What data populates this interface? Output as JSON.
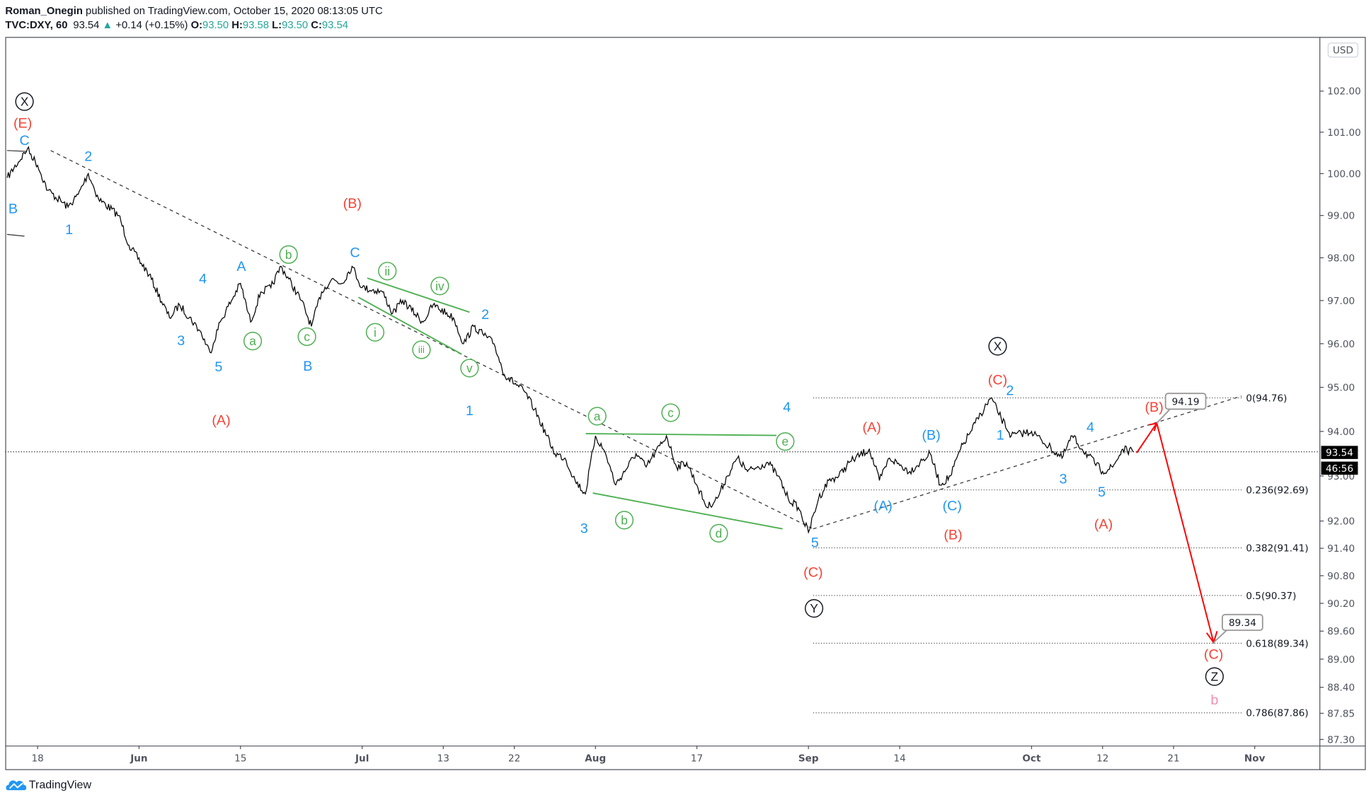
{
  "header": {
    "author": "Roman_Onegin",
    "published": " published on TradingView.com, October 15, 2020 08:13:05 UTC",
    "symbol": "TVC:DXY, 60",
    "last": "93.54",
    "change": "+0.14 (+0.15%)",
    "o_label": "O:",
    "o": "93.50",
    "h_label": "H:",
    "h": "93.58",
    "l_label": "L:",
    "l": "93.50",
    "c_label": "C:",
    "c": "93.54"
  },
  "footer": {
    "brand": "TradingView"
  },
  "colors": {
    "wave_blue": "#2196f3",
    "wave_red": "#f44336",
    "wave_green": "#4caf50",
    "wave_black": "#131722",
    "wave_pink": "#f48fb1",
    "arrow": "#ff0000",
    "up": "#26a69a"
  },
  "chart_data": {
    "type": "line",
    "title": "TVC:DXY, 60",
    "currency": "USD",
    "y_scale": "log",
    "ylim": [
      87.3,
      102.6
    ],
    "xlim": [
      "2020-05-13",
      "2020-11-04"
    ],
    "grid": false,
    "last_price": "93.54",
    "countdown": "46:56",
    "y_ticks": [
      "102.00",
      "101.00",
      "100.00",
      "99.00",
      "98.00",
      "97.00",
      "96.00",
      "95.00",
      "94.00",
      "93.00",
      "92.00",
      "91.40",
      "90.80",
      "90.20",
      "89.60",
      "89.00",
      "88.40",
      "87.85",
      "87.30"
    ],
    "x_ticks": [
      {
        "date": "2020-05-18",
        "label": "18",
        "major": false
      },
      {
        "date": "2020-06-01",
        "label": "Jun",
        "major": true
      },
      {
        "date": "2020-06-15",
        "label": "15",
        "major": false
      },
      {
        "date": "2020-07-01",
        "label": "Jul",
        "major": true
      },
      {
        "date": "2020-07-13",
        "label": "13",
        "major": false
      },
      {
        "date": "2020-07-22",
        "label": "22",
        "major": false
      },
      {
        "date": "2020-08-03",
        "label": "Aug",
        "major": true
      },
      {
        "date": "2020-08-17",
        "label": "17",
        "major": false
      },
      {
        "date": "2020-09-01",
        "label": "Sep",
        "major": true
      },
      {
        "date": "2020-09-14",
        "label": "14",
        "major": false
      },
      {
        "date": "2020-10-01",
        "label": "Oct",
        "major": true
      },
      {
        "date": "2020-10-12",
        "label": "12",
        "major": false
      },
      {
        "date": "2020-10-21",
        "label": "21",
        "major": false
      },
      {
        "date": "2020-11-02",
        "label": "Nov",
        "major": true
      }
    ],
    "series": [
      {
        "points": [
          [
            "2020-05-13",
            99.9
          ],
          [
            "2020-05-15",
            100.6
          ],
          [
            "2020-05-18",
            100.2
          ],
          [
            "2020-05-19",
            99.6
          ],
          [
            "2020-05-21",
            99.2
          ],
          [
            "2020-05-22",
            99.5
          ],
          [
            "2020-05-25",
            100.0
          ],
          [
            "2020-05-26",
            99.4
          ],
          [
            "2020-05-28",
            99.0
          ],
          [
            "2020-05-29",
            98.3
          ],
          [
            "2020-06-02",
            97.6
          ],
          [
            "2020-06-04",
            96.6
          ],
          [
            "2020-06-05",
            96.9
          ],
          [
            "2020-06-09",
            96.3
          ],
          [
            "2020-06-10",
            95.8
          ],
          [
            "2020-06-11",
            96.5
          ],
          [
            "2020-06-15",
            97.4
          ],
          [
            "2020-06-16",
            96.5
          ],
          [
            "2020-06-17",
            97.2
          ],
          [
            "2020-06-18",
            97.3
          ],
          [
            "2020-06-19",
            97.8
          ],
          [
            "2020-06-23",
            97.0
          ],
          [
            "2020-06-24",
            96.4
          ],
          [
            "2020-06-25",
            97.2
          ],
          [
            "2020-06-26",
            97.5
          ],
          [
            "2020-06-29",
            97.4
          ],
          [
            "2020-06-30",
            97.8
          ],
          [
            "2020-07-01",
            97.3
          ],
          [
            "2020-07-03",
            97.2
          ],
          [
            "2020-07-06",
            96.7
          ],
          [
            "2020-07-07",
            97.0
          ],
          [
            "2020-07-09",
            96.5
          ],
          [
            "2020-07-10",
            96.9
          ],
          [
            "2020-07-14",
            96.6
          ],
          [
            "2020-07-15",
            96.0
          ],
          [
            "2020-07-16",
            96.4
          ],
          [
            "2020-07-20",
            96.0
          ],
          [
            "2020-07-21",
            95.3
          ],
          [
            "2020-07-23",
            94.9
          ],
          [
            "2020-07-24",
            94.5
          ],
          [
            "2020-07-28",
            93.5
          ],
          [
            "2020-07-29",
            93.4
          ],
          [
            "2020-07-30",
            92.9
          ],
          [
            "2020-07-31",
            92.6
          ],
          [
            "2020-08-03",
            93.9
          ],
          [
            "2020-08-04",
            93.5
          ],
          [
            "2020-08-05",
            92.8
          ],
          [
            "2020-08-07",
            93.5
          ],
          [
            "2020-08-10",
            93.2
          ],
          [
            "2020-08-12",
            93.9
          ],
          [
            "2020-08-13",
            93.2
          ],
          [
            "2020-08-14",
            93.3
          ],
          [
            "2020-08-17",
            92.8
          ],
          [
            "2020-08-18",
            92.3
          ],
          [
            "2020-08-19",
            92.5
          ],
          [
            "2020-08-20",
            93.0
          ],
          [
            "2020-08-21",
            93.4
          ],
          [
            "2020-08-24",
            93.1
          ],
          [
            "2020-08-26",
            93.3
          ],
          [
            "2020-08-27",
            93.0
          ],
          [
            "2020-08-28",
            92.5
          ],
          [
            "2020-08-31",
            92.3
          ],
          [
            "2020-09-01",
            91.75
          ],
          [
            "2020-09-02",
            92.5
          ],
          [
            "2020-09-03",
            92.9
          ],
          [
            "2020-09-04",
            93.0
          ],
          [
            "2020-09-07",
            93.3
          ],
          [
            "2020-09-09",
            93.6
          ],
          [
            "2020-09-10",
            92.9
          ],
          [
            "2020-09-11",
            93.4
          ],
          [
            "2020-09-15",
            93.1
          ],
          [
            "2020-09-16",
            93.3
          ],
          [
            "2020-09-17",
            93.5
          ],
          [
            "2020-09-18",
            92.8
          ],
          [
            "2020-09-21",
            93.0
          ],
          [
            "2020-09-22",
            93.6
          ],
          [
            "2020-09-23",
            94.0
          ],
          [
            "2020-09-24",
            94.4
          ],
          [
            "2020-09-25",
            94.76
          ],
          [
            "2020-09-28",
            94.3
          ],
          [
            "2020-09-29",
            93.9
          ],
          [
            "2020-10-01",
            94.0
          ],
          [
            "2020-10-02",
            93.8
          ],
          [
            "2020-10-06",
            93.4
          ],
          [
            "2020-10-07",
            93.9
          ],
          [
            "2020-10-08",
            93.6
          ],
          [
            "2020-10-12",
            93.1
          ],
          [
            "2020-10-13",
            93.2
          ],
          [
            "2020-10-14",
            93.6
          ],
          [
            "2020-10-15",
            93.54
          ]
        ]
      }
    ],
    "fib_levels": [
      {
        "ratio": "0",
        "price": "94.76",
        "label": "0(94.76)"
      },
      {
        "ratio": "0.236",
        "price": "92.69",
        "label": "0.236(92.69)"
      },
      {
        "ratio": "0.382",
        "price": "91.41",
        "label": "0.382(91.41)"
      },
      {
        "ratio": "0.5",
        "price": "90.37",
        "label": "0.5(90.37)"
      },
      {
        "ratio": "0.618",
        "price": "89.34",
        "label": "0.618(89.34)"
      },
      {
        "ratio": "0.786",
        "price": "87.86",
        "label": "0.786(87.86)"
      }
    ],
    "callouts": [
      "94.19",
      "89.34"
    ],
    "wave_labels": [
      {
        "text": "X",
        "color": "black",
        "circled": true
      },
      {
        "text": "X",
        "color": "black",
        "circled": true
      },
      {
        "text": "Y",
        "color": "black",
        "circled": true
      },
      {
        "text": "Z",
        "color": "black",
        "circled": true
      },
      {
        "text": "(E)",
        "color": "red"
      },
      {
        "text": "(B)",
        "color": "red"
      },
      {
        "text": "(A)",
        "color": "red"
      },
      {
        "text": "(C)",
        "color": "red"
      },
      {
        "text": "(A)",
        "color": "red"
      },
      {
        "text": "(C)",
        "color": "red"
      },
      {
        "text": "(B)",
        "color": "red"
      },
      {
        "text": "(A)",
        "color": "red"
      },
      {
        "text": "(B)",
        "color": "red"
      },
      {
        "text": "(C)",
        "color": "red"
      },
      {
        "text": "b",
        "color": "pink"
      },
      {
        "text": "C",
        "color": "blue"
      },
      {
        "text": "B",
        "color": "blue"
      },
      {
        "text": "2",
        "color": "blue"
      },
      {
        "text": "1",
        "color": "blue"
      },
      {
        "text": "4",
        "color": "blue"
      },
      {
        "text": "3",
        "color": "blue"
      },
      {
        "text": "5",
        "color": "blue"
      },
      {
        "text": "A",
        "color": "blue"
      },
      {
        "text": "B",
        "color": "blue"
      },
      {
        "text": "C",
        "color": "blue"
      },
      {
        "text": "2",
        "color": "blue"
      },
      {
        "text": "1",
        "color": "blue"
      },
      {
        "text": "3",
        "color": "blue"
      },
      {
        "text": "4",
        "color": "blue"
      },
      {
        "text": "5",
        "color": "blue"
      },
      {
        "text": "(A)",
        "color": "blue"
      },
      {
        "text": "(B)",
        "color": "blue"
      },
      {
        "text": "(C)",
        "color": "blue"
      },
      {
        "text": "2",
        "color": "blue"
      },
      {
        "text": "1",
        "color": "blue"
      },
      {
        "text": "3",
        "color": "blue"
      },
      {
        "text": "4",
        "color": "blue"
      },
      {
        "text": "5",
        "color": "blue"
      },
      {
        "text": "b",
        "color": "green",
        "circled": true
      },
      {
        "text": "a",
        "color": "green",
        "circled": true
      },
      {
        "text": "c",
        "color": "green",
        "circled": true
      },
      {
        "text": "ii",
        "color": "green",
        "circled": true
      },
      {
        "text": "iv",
        "color": "green",
        "circled": true
      },
      {
        "text": "i",
        "color": "green",
        "circled": true
      },
      {
        "text": "iii",
        "color": "green",
        "circled": true
      },
      {
        "text": "v",
        "color": "green",
        "circled": true
      },
      {
        "text": "a",
        "color": "green",
        "circled": true
      },
      {
        "text": "c",
        "color": "green",
        "circled": true
      },
      {
        "text": "e",
        "color": "green",
        "circled": true
      },
      {
        "text": "b",
        "color": "green",
        "circled": true
      },
      {
        "text": "d",
        "color": "green",
        "circled": true
      }
    ]
  }
}
